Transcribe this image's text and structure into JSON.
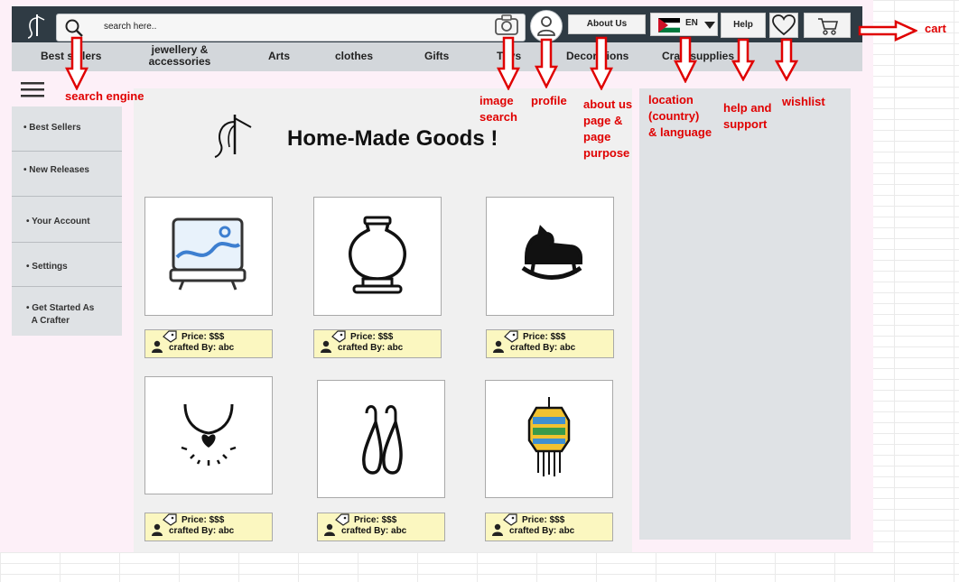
{
  "header": {
    "search": {
      "placeholder": "search here.."
    },
    "about_label": "About Us",
    "lang_label": "EN",
    "help_label": "Help"
  },
  "categories": [
    "Best sellers",
    "jewellery &",
    "accessories",
    "Arts",
    "clothes",
    "Gifts",
    "Toys",
    "Decorations",
    "Craft supplies"
  ],
  "sidebar": {
    "items": [
      "Best Sellers",
      "New Releases",
      "Your Account",
      "Settings",
      "Get Started As",
      "A Crafter"
    ]
  },
  "brand": {
    "title": "Home-Made Goods !"
  },
  "products": [
    {
      "icon": "painting-easel-icon",
      "price": "Price: $$$",
      "crafter": "crafted By: abc"
    },
    {
      "icon": "pottery-vase-icon",
      "price": "Price: $$$",
      "crafter": "crafted By: abc"
    },
    {
      "icon": "rocking-horse-icon",
      "price": "Price: $$$",
      "crafter": "crafted By: abc"
    },
    {
      "icon": "necklace-icon",
      "price": "Price: $$$",
      "crafter": "crafted By: abc"
    },
    {
      "icon": "earrings-icon",
      "price": "Price: $$$",
      "crafter": "crafted By: abc"
    },
    {
      "icon": "lantern-icon",
      "price": "Price: $$$",
      "crafter": "crafted By: abc"
    }
  ],
  "annotations": {
    "search_engine": "search engine",
    "image_search": [
      "image",
      "search"
    ],
    "profile": "profile",
    "about": [
      "about us",
      "page &",
      "page",
      "purpose"
    ],
    "location": [
      "location",
      "(country)",
      "& language"
    ],
    "help": [
      "help and",
      "support"
    ],
    "wishlist": "wishlist",
    "cart": "cart"
  },
  "colors": {
    "topbar": "#2f3b44",
    "category_bar": "#d3d7db",
    "annotation": "#e00000",
    "price_tag": "#fbf7c0"
  }
}
